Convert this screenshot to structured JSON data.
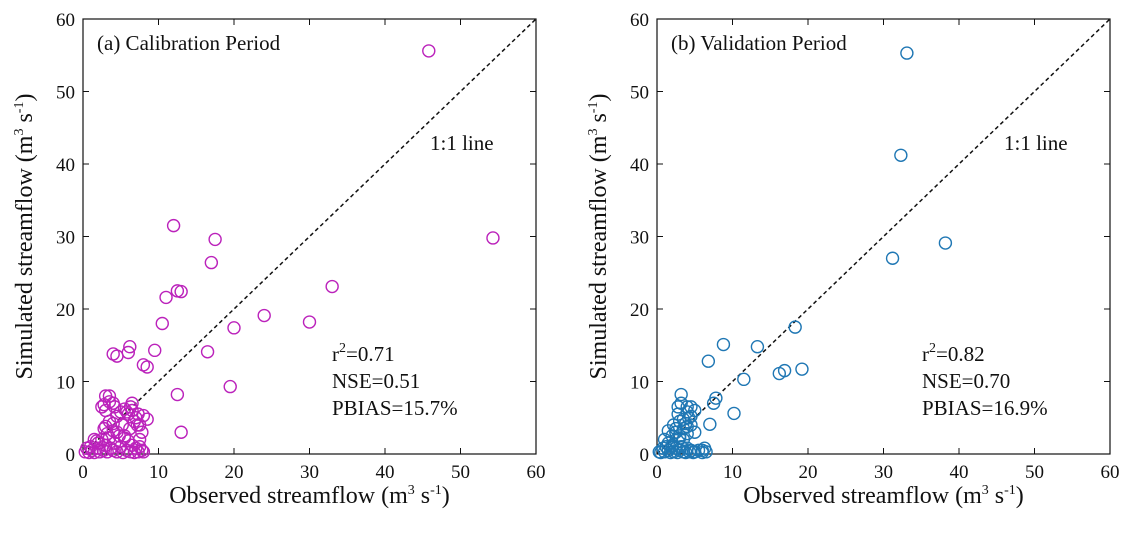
{
  "chart_data": [
    {
      "type": "scatter",
      "title": "(a) Calibration Period",
      "xlabel": "Observed streamflow (m3 s-1)",
      "ylabel": "Simulated streamflow (m3 s-1)",
      "xlim": [
        0,
        60
      ],
      "ylim": [
        0,
        60
      ],
      "xticks": [
        "0",
        "10",
        "20",
        "30",
        "40",
        "50",
        "60"
      ],
      "yticks": [
        "0",
        "10",
        "20",
        "30",
        "40",
        "50",
        "60"
      ],
      "reference_line_label": "1:1 line",
      "stats": {
        "r2": "r²=0.71",
        "nse": "NSE=0.51",
        "pbias": "PBIAS=15.7%"
      },
      "marker_color": "#bb22bb",
      "series": [
        {
          "x": [
            0.3,
            0.5,
            0.8,
            1.0,
            1.2,
            1.5,
            1.8,
            2.0,
            2.2,
            2.5,
            2.7,
            3.0,
            3.2,
            3.5,
            3.7,
            4.0,
            4.2,
            4.5,
            4.8,
            5.0,
            5.3,
            5.5,
            5.8,
            6.0,
            6.3,
            6.5,
            6.8,
            7.0,
            7.3,
            7.5,
            7.8,
            8.0,
            1.5,
            2.0,
            2.8,
            3.2,
            4.0,
            4.5,
            5.5,
            6.2,
            6.8,
            7.5,
            2.5,
            3.0,
            3.5,
            4.0,
            5.2,
            6.0,
            7.2,
            7.8,
            3.0,
            3.5,
            4.2,
            5.0,
            6.5,
            7.0,
            2.8,
            3.5,
            4.5,
            5.5,
            6.3,
            3.0,
            4.0,
            5.8,
            6.5,
            7.3,
            7.5,
            8.0,
            8.5,
            4.0,
            4.5,
            6.0,
            6.2,
            8.0,
            8.5,
            9.5,
            10.5,
            11.0,
            12.0,
            12.5,
            12.5,
            13.0,
            13.0,
            16.5,
            17.0,
            17.5,
            19.5,
            20.0,
            24.0,
            30.0,
            33.0,
            45.8,
            54.3
          ],
          "y": [
            0.3,
            0.8,
            0.2,
            1.0,
            0.5,
            0.2,
            1.8,
            0.8,
            0.3,
            2.0,
            0.5,
            1.2,
            0.3,
            2.2,
            0.8,
            0.5,
            1.5,
            0.3,
            2.5,
            1.0,
            0.2,
            2.2,
            0.5,
            1.8,
            0.3,
            1.2,
            0.2,
            0.8,
            0.3,
            1.0,
            0.5,
            0.3,
            2.0,
            1.5,
            3.5,
            2.8,
            4.2,
            3.0,
            2.5,
            3.5,
            4.5,
            2.0,
            6.5,
            3.8,
            4.5,
            3.2,
            4.0,
            5.5,
            4.0,
            3.0,
            8.0,
            7.2,
            6.5,
            5.8,
            6.0,
            5.0,
            6.8,
            8.0,
            5.2,
            6.2,
            6.5,
            6.0,
            7.0,
            5.8,
            7.0,
            5.5,
            4.0,
            5.3,
            4.8,
            13.8,
            13.5,
            14.0,
            14.8,
            12.3,
            12.0,
            14.3,
            18.0,
            21.6,
            31.5,
            22.5,
            8.2,
            3.0,
            22.4,
            14.1,
            26.4,
            29.6,
            9.3,
            17.4,
            19.1,
            18.2,
            23.1,
            55.6,
            29.8
          ]
        }
      ]
    },
    {
      "type": "scatter",
      "title": "(b) Validation Period",
      "xlabel": "Observed streamflow (m3 s-1)",
      "ylabel": "Simulated streamflow (m3 s-1)",
      "xlim": [
        0,
        60
      ],
      "ylim": [
        0,
        60
      ],
      "xticks": [
        "0",
        "10",
        "20",
        "30",
        "40",
        "50",
        "60"
      ],
      "yticks": [
        "0",
        "10",
        "20",
        "30",
        "40",
        "50",
        "60"
      ],
      "reference_line_label": "1:1 line",
      "stats": {
        "r2": "r²=0.82",
        "nse": "NSE=0.70",
        "pbias": "PBIAS=16.9%"
      },
      "marker_color": "#1f77b4",
      "series": [
        {
          "x": [
            0.3,
            0.5,
            0.8,
            1.0,
            1.2,
            1.5,
            1.8,
            2.0,
            2.2,
            2.5,
            2.7,
            3.0,
            3.2,
            3.5,
            3.8,
            4.0,
            4.3,
            4.5,
            4.8,
            5.0,
            5.5,
            6.0,
            6.3,
            6.5,
            1.0,
            1.5,
            2.0,
            2.5,
            3.0,
            3.5,
            4.0,
            4.5,
            2.0,
            2.5,
            3.0,
            3.5,
            4.0,
            5.0,
            1.5,
            2.8,
            3.2,
            4.2,
            2.2,
            2.8,
            3.5,
            4.0,
            4.5,
            2.5,
            3.0,
            3.8,
            4.5,
            5.0,
            3.2,
            4.0,
            6.0,
            7.0,
            7.5,
            7.8,
            10.2,
            11.5,
            6.8,
            8.8,
            13.3,
            16.2,
            16.9,
            18.3,
            19.2,
            31.2,
            32.3,
            33.1,
            38.2
          ],
          "y": [
            0.3,
            0.2,
            0.8,
            0.3,
            1.0,
            0.5,
            0.2,
            1.2,
            0.3,
            0.8,
            0.2,
            0.5,
            1.0,
            0.3,
            0.2,
            0.8,
            0.3,
            0.5,
            0.2,
            0.3,
            0.5,
            0.2,
            0.8,
            0.3,
            2.0,
            1.5,
            2.5,
            3.0,
            2.2,
            3.5,
            2.8,
            4.0,
            1.0,
            3.5,
            4.5,
            2.0,
            3.8,
            3.0,
            3.2,
            6.5,
            8.2,
            5.0,
            4.0,
            5.5,
            4.8,
            5.8,
            6.5,
            3.0,
            2.5,
            4.2,
            5.2,
            6.0,
            7.0,
            6.5,
            0.5,
            4.1,
            7.0,
            7.7,
            5.6,
            10.3,
            12.8,
            15.1,
            14.8,
            11.1,
            11.5,
            17.5,
            11.7,
            27.0,
            41.2,
            55.3,
            29.1
          ]
        }
      ]
    }
  ]
}
